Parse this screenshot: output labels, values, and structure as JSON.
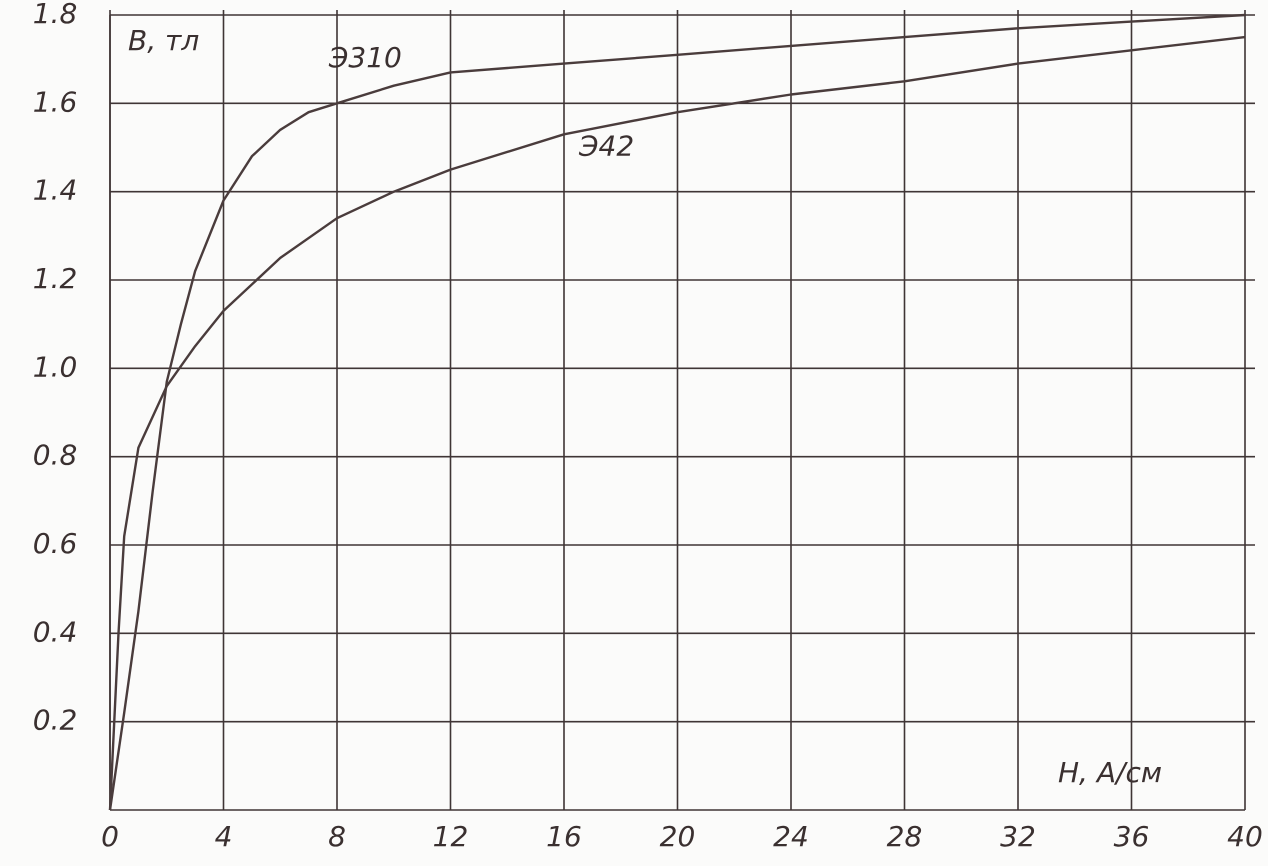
{
  "chart_data": {
    "type": "line",
    "x_label": "H, А/см",
    "y_label": "B, тл",
    "xlim": [
      0,
      40
    ],
    "xticks": [
      0,
      4,
      8,
      12,
      16,
      20,
      24,
      28,
      32,
      36,
      40
    ],
    "ylim": [
      0,
      1.8
    ],
    "yticks": [
      0.2,
      0.4,
      0.6,
      0.8,
      {
        "value": 1,
        "label": "1.0"
      },
      1.2,
      1.4,
      1.6,
      1.8
    ],
    "grid": true,
    "series": [
      {
        "name": "Э310",
        "color": "#4a3c3c",
        "x": [
          0,
          0.5,
          1,
          1.5,
          2,
          2.5,
          3,
          4,
          5,
          6,
          7,
          8,
          10,
          12,
          16,
          20,
          24,
          28,
          32,
          36,
          40
        ],
        "values": [
          0,
          0.22,
          0.45,
          0.72,
          0.97,
          1.1,
          1.22,
          1.38,
          1.48,
          1.54,
          1.58,
          1.6,
          1.64,
          1.67,
          1.69,
          1.71,
          1.73,
          1.75,
          1.77,
          1.785,
          1.8
        ]
      },
      {
        "name": "Э42",
        "color": "#4a3c3c",
        "x": [
          0,
          0.3,
          0.5,
          1,
          2,
          3,
          4,
          6,
          8,
          10,
          12,
          16,
          20,
          24,
          28,
          32,
          36,
          40
        ],
        "values": [
          0,
          0.4,
          0.62,
          0.82,
          0.96,
          1.05,
          1.13,
          1.25,
          1.34,
          1.4,
          1.45,
          1.53,
          1.58,
          1.62,
          1.65,
          1.69,
          1.72,
          1.75
        ]
      }
    ]
  }
}
